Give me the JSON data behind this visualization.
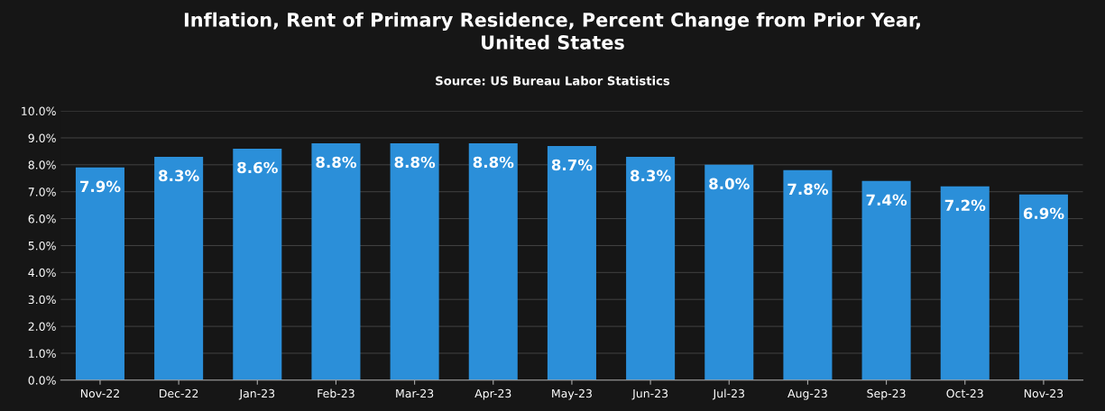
{
  "chart_data": {
    "type": "bar",
    "title": "Inflation, Rent of Primary Residence, Percent Change from Prior Year,\nUnited States",
    "subtitle": "Source: US Bureau Labor Statistics",
    "categories": [
      "Nov-22",
      "Dec-22",
      "Jan-23",
      "Feb-23",
      "Mar-23",
      "Apr-23",
      "May-23",
      "Jun-23",
      "Jul-23",
      "Aug-23",
      "Sep-23",
      "Oct-23",
      "Nov-23"
    ],
    "values": [
      7.9,
      8.3,
      8.6,
      8.8,
      8.8,
      8.8,
      8.7,
      8.3,
      8.0,
      7.8,
      7.4,
      7.2,
      6.9
    ],
    "value_labels": [
      "7.9%",
      "8.3%",
      "8.6%",
      "8.8%",
      "8.8%",
      "8.8%",
      "8.7%",
      "8.3%",
      "8.0%",
      "7.8%",
      "7.4%",
      "7.2%",
      "6.9%"
    ],
    "color": "#2b8fd9",
    "ylim": [
      0,
      10
    ],
    "yticks": [
      {
        "value": 0,
        "label": "0.0%"
      },
      {
        "value": 1,
        "label": "1.0%"
      },
      {
        "value": 2,
        "label": "2.0%"
      },
      {
        "value": 3,
        "label": "3.0%"
      },
      {
        "value": 4,
        "label": "4.0%"
      },
      {
        "value": 5,
        "label": "5.0%"
      },
      {
        "value": 6,
        "label": "6.0%"
      },
      {
        "value": 7,
        "label": "7.0%"
      },
      {
        "value": 8,
        "label": "8.0%"
      },
      {
        "value": 9,
        "label": "9.0%"
      },
      {
        "value": 10,
        "label": "10.0%"
      }
    ],
    "grid": "y"
  }
}
